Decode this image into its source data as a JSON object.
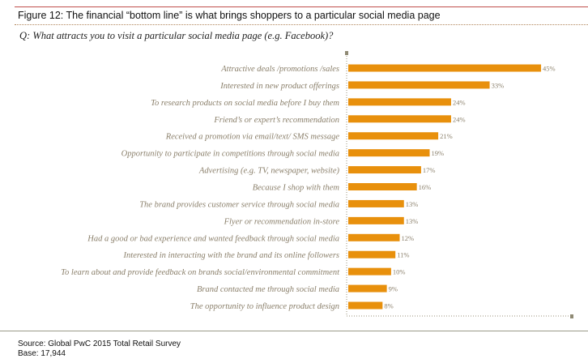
{
  "title": "Figure 12: The financial “bottom line” is what brings shoppers to a particular social media page",
  "question": "Q: What attracts you to visit a particular social media page (e.g. Facebook)?",
  "source": "Source: Global PwC 2015 Total Retail Survey",
  "base": "Base: 17,944",
  "chart_data": {
    "type": "bar",
    "orientation": "horizontal",
    "categories": [
      "Attractive deals /promotions /sales",
      "Interested in new product offerings",
      "To research products on social media before I buy them",
      "Friend’s or expert’s recommendation",
      "Received a promotion via email/text/ SMS message",
      "Opportunity to participate in competitions through social media",
      "Advertising (e.g. TV, newspaper, website)",
      "Because I shop with them",
      "The brand provides customer service through social media",
      "Flyer or recommendation in-store",
      "Had a good or bad experience and wanted feedback through social media",
      "Interested in interacting with the brand and its online followers",
      "To learn about and provide feedback on brands social/environmental commitment",
      "Brand contacted me through social media",
      "The opportunity to influence product design"
    ],
    "values": [
      45,
      33,
      24,
      24,
      21,
      19,
      17,
      16,
      13,
      13,
      12,
      11,
      10,
      9,
      8
    ],
    "labels": [
      "45%",
      "33%",
      "24%",
      "24%",
      "21%",
      "19%",
      "17%",
      "16%",
      "13%",
      "13%",
      "12%",
      "11%",
      "10%",
      "9%",
      "8%"
    ],
    "unit": "%",
    "bar_color": "#e8900c",
    "label_color": "#8a7f6a",
    "grid": false
  }
}
